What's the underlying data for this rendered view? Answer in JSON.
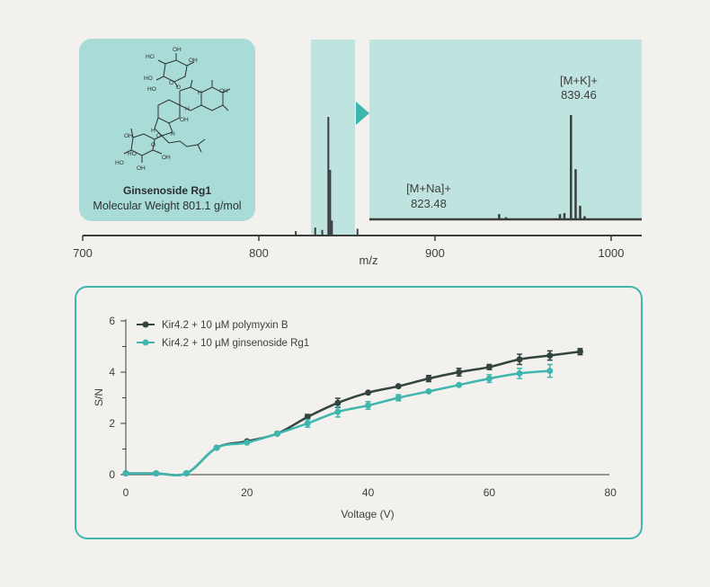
{
  "molecule": {
    "name": "Ginsenoside Rg1",
    "weight_label": "Molecular Weight 801.1 g/mol",
    "structure_labels": [
      "OH",
      "HO",
      "OH",
      "HO",
      "O",
      "HO",
      "O",
      "OH",
      "H",
      "OH",
      "H",
      "H",
      "H",
      "OH",
      "HO",
      "O",
      "O",
      "HO",
      "OH",
      "OH"
    ]
  },
  "chart_data": [
    {
      "type": "line",
      "subtype": "mass-spectrum",
      "xlabel": "m/z",
      "ylabel": "",
      "xlim": [
        700,
        1015
      ],
      "xticks": [
        700,
        800,
        900,
        1000
      ],
      "main_peaks": [
        {
          "mz": 821,
          "intensity": 0.03
        },
        {
          "mz": 832,
          "intensity": 0.06
        },
        {
          "mz": 836,
          "intensity": 0.04
        },
        {
          "mz": 839.46,
          "intensity": 1.0
        },
        {
          "mz": 840.5,
          "intensity": 0.55
        },
        {
          "mz": 841.5,
          "intensity": 0.12
        },
        {
          "mz": 856,
          "intensity": 0.05
        }
      ],
      "zoom_window": [
        829,
        851
      ],
      "zoom_range": [
        795,
        855
      ],
      "zoom_peaks": [
        {
          "mz": 823.48,
          "intensity": 0.05
        },
        {
          "mz": 825,
          "intensity": 0.02
        },
        {
          "mz": 837,
          "intensity": 0.05
        },
        {
          "mz": 838,
          "intensity": 0.06
        },
        {
          "mz": 839.46,
          "intensity": 1.0
        },
        {
          "mz": 840.5,
          "intensity": 0.48
        },
        {
          "mz": 841.5,
          "intensity": 0.13
        },
        {
          "mz": 842.5,
          "intensity": 0.03
        }
      ],
      "annotations": [
        {
          "label": "[M+K]+",
          "value": "839.46",
          "mz": 839.46
        },
        {
          "label": "[M+Na]+",
          "value": "823.48",
          "mz": 823.48
        }
      ],
      "colors": {
        "highlight": "#bfe3de",
        "line": "#3b3d3d",
        "arrow": "#3fb6ad"
      }
    },
    {
      "type": "line",
      "xlabel": "Voltage (V)",
      "ylabel": "S/N",
      "xlim": [
        0,
        80
      ],
      "ylim": [
        0,
        6
      ],
      "xticks": [
        0,
        20,
        40,
        60,
        80
      ],
      "yticks": [
        0,
        2,
        4,
        6
      ],
      "legend_position": "top-left",
      "x": [
        0,
        5,
        10,
        15,
        20,
        25,
        30,
        35,
        40,
        45,
        50,
        55,
        60,
        65,
        70,
        75
      ],
      "series": [
        {
          "name": "Kir4.2 + 10 µM polymyxin B",
          "color": "#33443f",
          "values": [
            0.05,
            0.05,
            0.05,
            1.05,
            1.3,
            1.6,
            2.25,
            2.8,
            3.2,
            3.45,
            3.75,
            4.0,
            4.2,
            4.5,
            4.65,
            4.8
          ],
          "errors": [
            0,
            0,
            0,
            0,
            0,
            0,
            0.1,
            0.18,
            0,
            0,
            0.12,
            0.15,
            0.1,
            0.2,
            0.18,
            0.12
          ]
        },
        {
          "name": "Kir4.2 + 10 µM ginsenoside Rg1",
          "color": "#3fb6ad",
          "values": [
            0.05,
            0.05,
            0.05,
            1.05,
            1.25,
            1.6,
            2.0,
            2.45,
            2.7,
            3.0,
            3.25,
            3.5,
            3.75,
            3.95,
            4.05,
            null
          ],
          "errors": [
            0,
            0,
            0,
            0,
            0,
            0,
            0.15,
            0.2,
            0.15,
            0.12,
            0,
            0,
            0.15,
            0.2,
            0.25,
            0
          ]
        }
      ]
    }
  ]
}
